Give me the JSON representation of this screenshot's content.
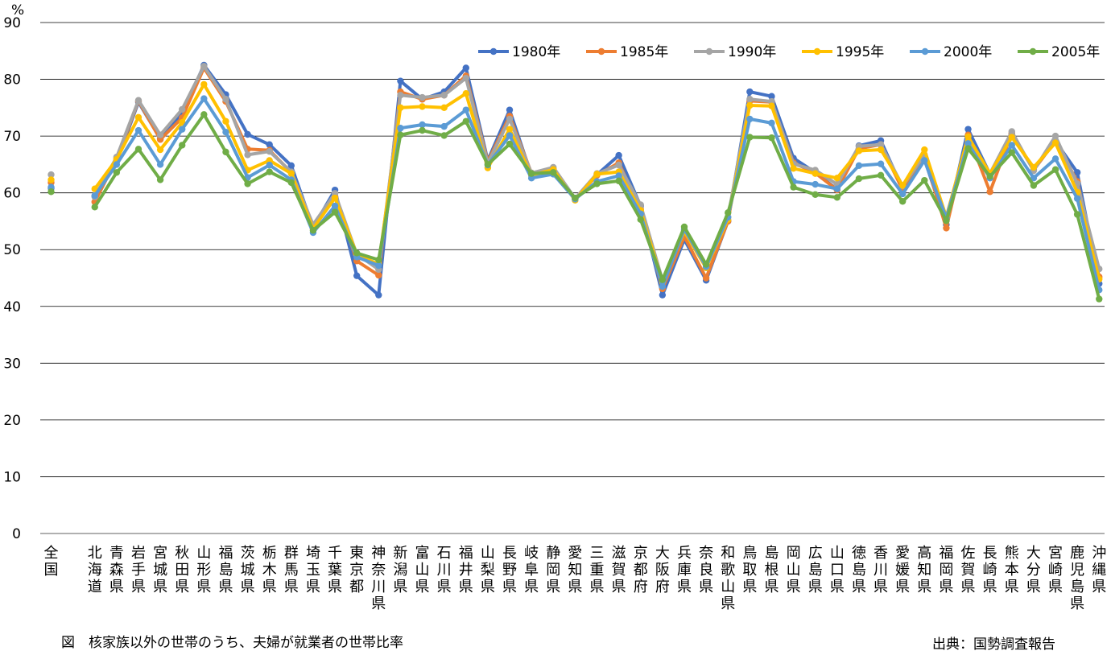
{
  "unit_label": "%",
  "caption": "図　核家族以外の世帯のうち、夫婦が就業者の世帯比率",
  "source": "出典：国勢調査報告",
  "colors": {
    "1980年": "#4472C4",
    "1985年": "#ED7D31",
    "1990年": "#A5A5A5",
    "1995年": "#FFC000",
    "2000年": "#5B9BD5",
    "2005年": "#70AD47"
  },
  "chart_data": {
    "type": "line",
    "title": "",
    "xlabel": "",
    "ylabel": "%",
    "ylim": [
      0,
      90
    ],
    "yticks": [
      0,
      10,
      20,
      30,
      40,
      50,
      60,
      70,
      80,
      90
    ],
    "grid": true,
    "legend_position": "top-right",
    "categories": [
      "全国",
      "",
      "北海道",
      "青森県",
      "岩手県",
      "宮城県",
      "秋田県",
      "山形県",
      "福島県",
      "茨城県",
      "栃木県",
      "群馬県",
      "埼玉県",
      "千葉県",
      "東京都",
      "神奈川県",
      "新潟県",
      "富山県",
      "石川県",
      "福井県",
      "山梨県",
      "長野県",
      "岐阜県",
      "静岡県",
      "愛知県",
      "三重県",
      "滋賀県",
      "京都府",
      "大阪府",
      "兵庫県",
      "奈良県",
      "和歌山県",
      "鳥取県",
      "島根県",
      "岡山県",
      "広島県",
      "山口県",
      "徳島県",
      "香川県",
      "愛媛県",
      "高知県",
      "福岡県",
      "佐賀県",
      "長崎県",
      "熊本県",
      "大分県",
      "宮崎県",
      "鹿児島県",
      "沖縄県"
    ],
    "series": [
      {
        "name": "1980年",
        "values": [
          60.8,
          null,
          59.5,
          65.5,
          76.0,
          69.5,
          74.0,
          82.5,
          77.3,
          70.3,
          68.5,
          64.8,
          53.9,
          60.5,
          45.4,
          42.0,
          79.7,
          76.5,
          77.8,
          82.0,
          65.7,
          74.6,
          63.1,
          64.0,
          58.9,
          63.2,
          66.6,
          57.7,
          42.0,
          51.8,
          44.6,
          55.0,
          77.8,
          77.0,
          66.1,
          63.6,
          60.6,
          68.3,
          69.2,
          60.7,
          65.9,
          54.4,
          71.2,
          63.3,
          70.3,
          64.1,
          69.1,
          63.6,
          44.0
        ]
      },
      {
        "name": "1985年",
        "values": [
          61.8,
          null,
          58.4,
          66.0,
          76.2,
          69.4,
          73.2,
          82.0,
          76.1,
          67.7,
          67.5,
          63.6,
          53.7,
          59.4,
          48.0,
          45.5,
          77.8,
          76.5,
          77.2,
          80.6,
          65.5,
          73.5,
          63.5,
          64.3,
          58.9,
          63.1,
          65.3,
          57.1,
          43.1,
          52.3,
          45.0,
          55.0,
          76.2,
          76.0,
          65.3,
          63.5,
          60.5,
          67.8,
          68.5,
          60.5,
          66.4,
          53.8,
          70.2,
          60.2,
          70.5,
          64.0,
          69.2,
          62.0,
          45.2
        ]
      },
      {
        "name": "1990年",
        "values": [
          63.2,
          null,
          59.3,
          66.3,
          76.3,
          70.2,
          74.7,
          82.3,
          76.5,
          66.7,
          67.3,
          63.7,
          54.4,
          59.9,
          49.2,
          46.5,
          77.2,
          76.8,
          77.2,
          80.2,
          65.2,
          73.0,
          63.5,
          64.5,
          59.0,
          63.4,
          64.9,
          57.9,
          44.6,
          53.4,
          46.8,
          55.7,
          76.5,
          76.1,
          65.1,
          64.0,
          61.5,
          68.2,
          68.5,
          61.2,
          66.7,
          55.8,
          69.2,
          63.4,
          70.8,
          63.9,
          70.0,
          61.6,
          46.6
        ]
      },
      {
        "name": "1995年",
        "values": [
          62.3,
          null,
          60.7,
          65.9,
          73.3,
          67.6,
          72.4,
          79.1,
          72.6,
          64.0,
          65.7,
          63.4,
          53.7,
          59.1,
          49.2,
          47.4,
          75.0,
          75.2,
          75.0,
          77.5,
          64.4,
          71.2,
          63.1,
          64.1,
          58.7,
          63.3,
          63.7,
          56.9,
          44.3,
          53.2,
          46.8,
          55.3,
          75.4,
          75.3,
          64.3,
          63.4,
          62.6,
          67.4,
          67.6,
          61.3,
          67.6,
          55.7,
          69.9,
          63.4,
          69.8,
          64.5,
          68.8,
          60.1,
          44.8
        ]
      },
      {
        "name": "2000年",
        "values": [
          61.0,
          null,
          59.5,
          65.0,
          71.0,
          65.0,
          71.2,
          76.6,
          70.7,
          62.7,
          64.9,
          62.3,
          53.0,
          57.7,
          48.7,
          47.2,
          71.4,
          72.0,
          71.7,
          74.6,
          64.9,
          70.1,
          62.6,
          63.3,
          58.9,
          62.0,
          63.0,
          56.3,
          43.5,
          53.6,
          47.0,
          55.7,
          73.0,
          72.3,
          62.0,
          61.5,
          60.7,
          64.8,
          65.1,
          59.8,
          65.7,
          55.6,
          68.7,
          62.6,
          68.4,
          62.6,
          66.0,
          59.0,
          42.9
        ]
      },
      {
        "name": "2005年",
        "values": [
          60.2,
          null,
          57.5,
          63.6,
          67.7,
          62.3,
          68.4,
          73.8,
          67.2,
          61.6,
          63.7,
          61.8,
          53.4,
          56.6,
          49.4,
          48.2,
          70.2,
          71.0,
          70.1,
          72.6,
          65.0,
          68.6,
          63.4,
          63.6,
          59.1,
          61.6,
          62.1,
          55.3,
          44.7,
          54.0,
          47.4,
          56.5,
          69.8,
          69.7,
          61.0,
          59.7,
          59.2,
          62.5,
          63.1,
          58.5,
          62.2,
          55.1,
          67.8,
          62.9,
          67.1,
          61.3,
          64.1,
          56.2,
          41.3
        ]
      }
    ]
  }
}
